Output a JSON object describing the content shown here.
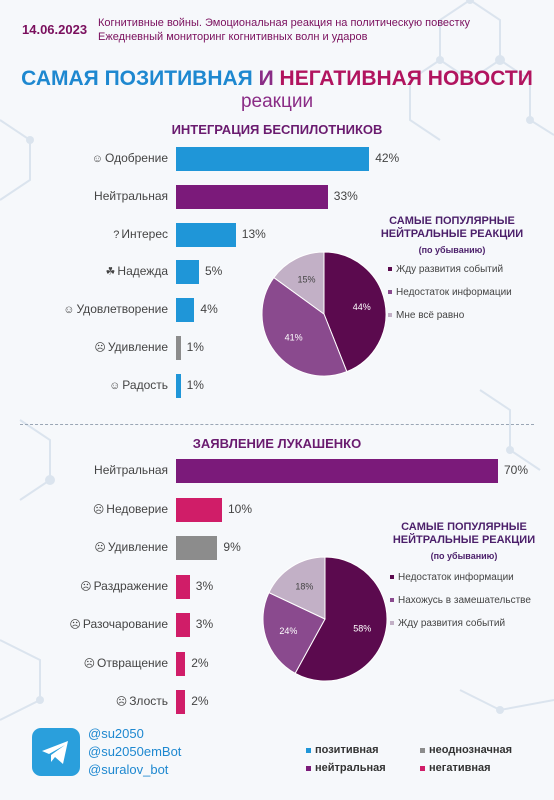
{
  "header": {
    "date": "14.06.2023",
    "subtitle_line1": "Когнитивные войны. Эмоциональная реакция на политическую повестку",
    "subtitle_line2": "Ежедневный мониторинг когнитивных волн и ударов"
  },
  "title": {
    "part1": "САМАЯ ",
    "positive": "ПОЗИТИВНАЯ",
    "part2": " И ",
    "negative": "НЕГАТИВНАЯ",
    "part3": " НОВОСТИ",
    "line2": "реакции"
  },
  "colors": {
    "positive": "#1f96d8",
    "neutral": "#7b1a7a",
    "ambiguous": "#8c8c8c",
    "negative": "#d01d68",
    "pie_dark": "#5b0a4e",
    "pie_mid": "#8a4a8e",
    "pie_light": "#c2b0c6"
  },
  "chart_data": [
    {
      "type": "bar",
      "title": "ИНТЕГРАЦИЯ БЕСПИЛОТНИКОВ",
      "categories": [
        "Одобрение",
        "Нейтральная",
        "Интерес",
        "Надежда",
        "Удовлетворение",
        "Удивление",
        "Радость"
      ],
      "icons": [
        "smile-icon",
        "",
        "question-icon",
        "hope-icon",
        "satisfied-icon",
        "surprise-icon",
        "joy-icon"
      ],
      "values": [
        42,
        33,
        13,
        5,
        4,
        1,
        1
      ],
      "value_labels": [
        "42%",
        "33%",
        "13%",
        "5%",
        "4%",
        "1%",
        "1%"
      ],
      "groups": [
        "positive",
        "neutral",
        "positive",
        "positive",
        "positive",
        "ambiguous",
        "positive"
      ],
      "xlim": [
        0,
        70
      ]
    },
    {
      "type": "pie",
      "title": "САМЫЕ ПОПУЛЯРНЫЕ НЕЙТРАЛЬНЫЕ РЕАКЦИИ",
      "subtitle": "(по убыванию)",
      "labels": [
        "Жду развития событий",
        "Недостаток информации",
        "Мне всё равно"
      ],
      "values": [
        44,
        41,
        15
      ],
      "value_labels": [
        "44%",
        "41%",
        "15%"
      ],
      "colors": [
        "#5b0a4e",
        "#8a4a8e",
        "#c2b0c6"
      ]
    },
    {
      "type": "bar",
      "title": "ЗАЯВЛЕНИЕ ЛУКАШЕНКО",
      "categories": [
        "Нейтральная",
        "Недоверие",
        "Удивление",
        "Раздражение",
        "Разочарование",
        "Отвращение",
        "Злость"
      ],
      "icons": [
        "",
        "distrust-icon",
        "surprise-icon",
        "annoyed-icon",
        "disappointed-icon",
        "disgust-icon",
        "angry-icon"
      ],
      "values": [
        70,
        10,
        9,
        3,
        3,
        2,
        2
      ],
      "value_labels": [
        "70%",
        "10%",
        "9%",
        "3%",
        "3%",
        "2%",
        "2%"
      ],
      "groups": [
        "neutral",
        "negative",
        "ambiguous",
        "negative",
        "negative",
        "negative",
        "negative"
      ],
      "xlim": [
        0,
        70
      ]
    },
    {
      "type": "pie",
      "title": "САМЫЕ ПОПУЛЯРНЫЕ НЕЙТРАЛЬНЫЕ РЕАКЦИИ",
      "subtitle": "(по убыванию)",
      "labels": [
        "Недостаток информации",
        "Нахожусь в замешательстве",
        "Жду развития событий"
      ],
      "values": [
        58,
        24,
        18
      ],
      "value_labels": [
        "58%",
        "24%",
        "18%"
      ],
      "colors": [
        "#5b0a4e",
        "#8a4a8e",
        "#c2b0c6"
      ]
    }
  ],
  "footer": {
    "handles": [
      "@su2050",
      "@su2050emBot",
      "@suralov_bot"
    ],
    "legend": [
      {
        "label": "позитивная",
        "key": "positive"
      },
      {
        "label": "неоднозначная",
        "key": "ambiguous"
      },
      {
        "label": "нейтральная",
        "key": "neutral"
      },
      {
        "label": "негативная",
        "key": "negative"
      }
    ]
  }
}
